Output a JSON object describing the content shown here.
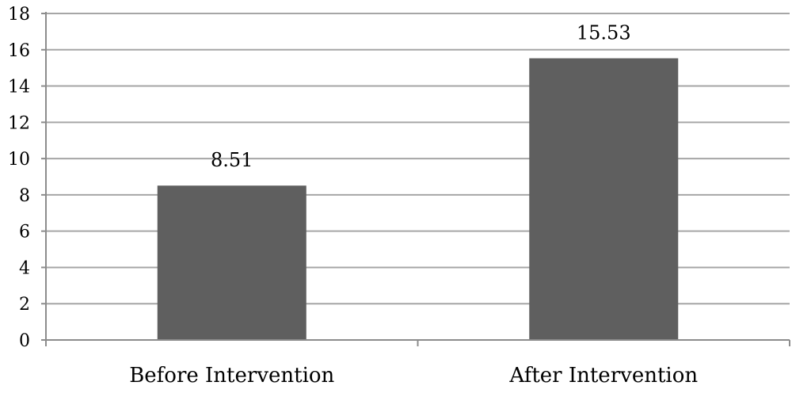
{
  "chart_data": {
    "type": "bar",
    "categories": [
      "Before Intervention",
      "After Intervention"
    ],
    "values": [
      8.51,
      15.53
    ],
    "data_labels": [
      "8.51",
      "15.53"
    ],
    "ylim": [
      0,
      18
    ],
    "yticks": [
      0,
      2,
      4,
      6,
      8,
      10,
      12,
      14,
      16,
      18
    ],
    "grid": true,
    "legend": "none",
    "colors": {
      "bar": "#5f5f5f",
      "grid": "#a6a6a6",
      "axis": "#8c8c8c"
    }
  }
}
